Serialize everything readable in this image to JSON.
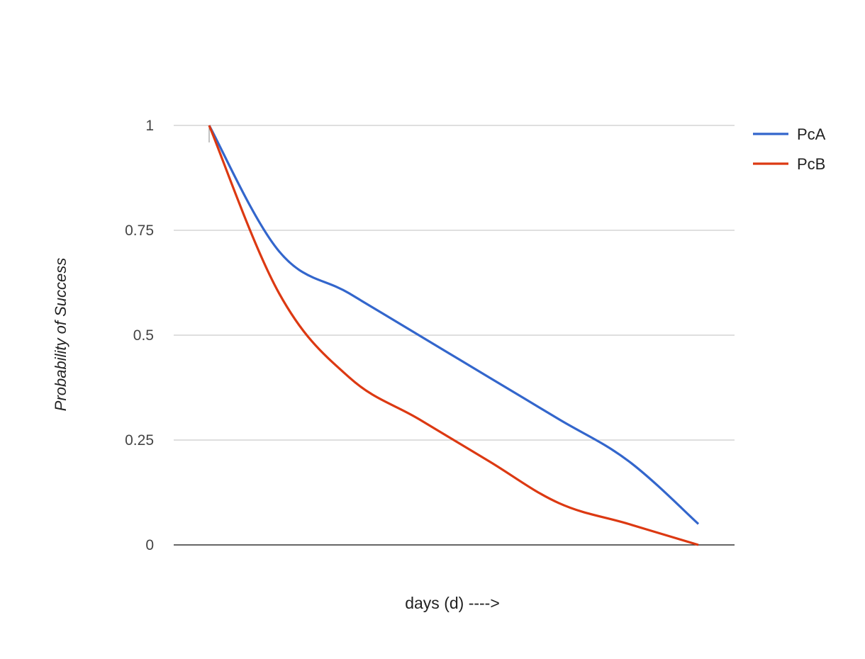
{
  "chart_data": {
    "type": "line",
    "xlabel": "days (d) ---->",
    "ylabel": "Probability of Success",
    "ylim": [
      0,
      1
    ],
    "y_ticks": [
      "0",
      "0.25",
      "0.5",
      "0.75",
      "1"
    ],
    "x": [
      0,
      1,
      2,
      3,
      4,
      5,
      6,
      7
    ],
    "grid": true,
    "legend_position": "right",
    "series": [
      {
        "name": "PcA",
        "color": "#3366cc",
        "values": [
          1.0,
          0.7,
          0.6,
          0.5,
          0.4,
          0.3,
          0.2,
          0.05
        ]
      },
      {
        "name": "PcB",
        "color": "#dc3912",
        "values": [
          1.0,
          0.6,
          0.4,
          0.3,
          0.2,
          0.1,
          0.05,
          0.0
        ]
      }
    ]
  }
}
